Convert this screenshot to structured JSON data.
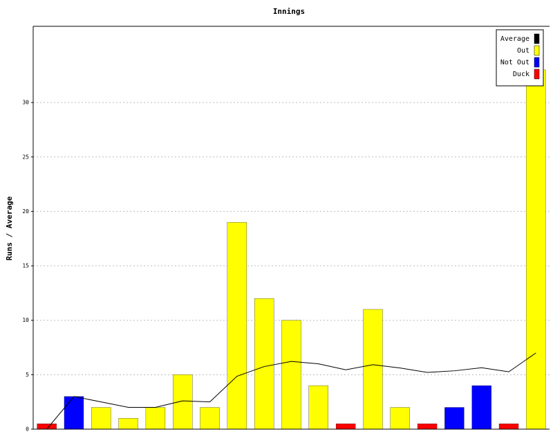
{
  "chart_data": {
    "type": "bar",
    "title": "Innings",
    "y_label": "Runs / Average",
    "categories": [
      null,
      null,
      null,
      null,
      null,
      null,
      null,
      null,
      null,
      null,
      null,
      null,
      null,
      null,
      null,
      null,
      null,
      null,
      null
    ],
    "ylim": [
      0,
      37
    ],
    "yticks": [
      0,
      5,
      10,
      15,
      20,
      25,
      30
    ],
    "grid": true,
    "legend": "top-right",
    "series": [
      {
        "name": "Average",
        "color": "#000000",
        "kind": "line",
        "values": [
          0,
          3,
          2.5,
          2,
          2,
          2.6,
          2.5,
          4.86,
          5.75,
          6.22,
          6,
          5.45,
          5.92,
          5.62,
          5.21,
          5.36,
          5.64,
          5.27,
          7
        ]
      },
      {
        "name": "Out",
        "color": "#ffff00",
        "kind": "bar",
        "values": [
          null,
          null,
          2,
          1,
          2,
          5,
          2,
          19,
          12,
          10,
          4,
          null,
          11,
          2,
          null,
          null,
          null,
          null,
          33
        ]
      },
      {
        "name": "Not Out",
        "color": "#0000ff",
        "kind": "bar",
        "values": [
          null,
          3,
          null,
          null,
          null,
          null,
          null,
          null,
          null,
          null,
          null,
          null,
          null,
          null,
          null,
          2,
          4,
          null,
          null
        ]
      },
      {
        "name": "Duck",
        "color": "#ff0000",
        "kind": "bar",
        "values": [
          0.5,
          null,
          null,
          null,
          null,
          null,
          null,
          null,
          null,
          null,
          null,
          0.5,
          null,
          null,
          0.5,
          null,
          null,
          0.5,
          null
        ]
      }
    ]
  }
}
